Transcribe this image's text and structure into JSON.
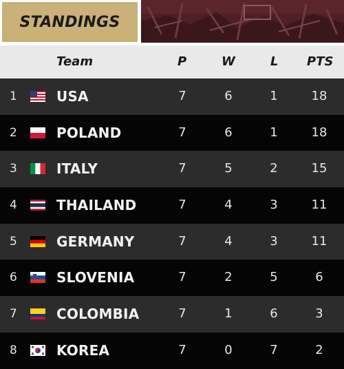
{
  "header": {
    "title": "STANDINGS"
  },
  "columns": {
    "team": "Team",
    "p": "P",
    "w": "W",
    "l": "L",
    "pts": "PTS"
  },
  "rows": [
    {
      "rank": "1",
      "team": "USA",
      "p": "7",
      "w": "6",
      "l": "1",
      "pts": "18",
      "flag": "usa-flag-icon"
    },
    {
      "rank": "2",
      "team": "POLAND",
      "p": "7",
      "w": "6",
      "l": "1",
      "pts": "18",
      "flag": "poland-flag-icon"
    },
    {
      "rank": "3",
      "team": "ITALY",
      "p": "7",
      "w": "5",
      "l": "2",
      "pts": "15",
      "flag": "italy-flag-icon"
    },
    {
      "rank": "4",
      "team": "THAILAND",
      "p": "7",
      "w": "4",
      "l": "3",
      "pts": "11",
      "flag": "thailand-flag-icon"
    },
    {
      "rank": "5",
      "team": "GERMANY",
      "p": "7",
      "w": "4",
      "l": "3",
      "pts": "11",
      "flag": "germany-flag-icon"
    },
    {
      "rank": "6",
      "team": "SLOVENIA",
      "p": "7",
      "w": "2",
      "l": "5",
      "pts": "6",
      "flag": "slovenia-flag-icon"
    },
    {
      "rank": "7",
      "team": "COLOMBIA",
      "p": "7",
      "w": "1",
      "l": "6",
      "pts": "3",
      "flag": "colombia-flag-icon"
    },
    {
      "rank": "8",
      "team": "KOREA",
      "p": "7",
      "w": "0",
      "l": "7",
      "pts": "2",
      "flag": "korea-flag-icon"
    }
  ]
}
